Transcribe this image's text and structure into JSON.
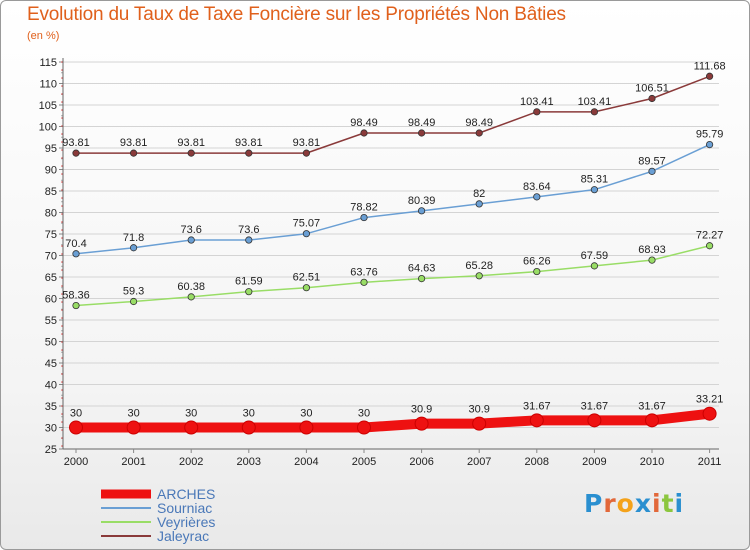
{
  "title": "Evolution du Taux de Taxe Foncière sur les Propriétés Non Bâties",
  "subtitle": "(en %)",
  "logo": {
    "letters": [
      "P",
      "r",
      "o",
      "x",
      "i",
      "t",
      "i"
    ],
    "colors": [
      "#2a8fd0",
      "#e2683a",
      "#f4a21a",
      "#2a8fd0",
      "#e2683a",
      "#8cc63f",
      "#2a8fd0"
    ]
  },
  "chart_data": {
    "type": "line",
    "x": [
      "2000",
      "2001",
      "2002",
      "2003",
      "2004",
      "2005",
      "2006",
      "2007",
      "2008",
      "2009",
      "2010",
      "2011"
    ],
    "ylim": [
      25,
      115
    ],
    "yticks": [
      25,
      30,
      35,
      40,
      45,
      50,
      55,
      60,
      65,
      70,
      75,
      80,
      85,
      90,
      95,
      100,
      105,
      110,
      115
    ],
    "grid": "horizontal",
    "legend_position": "bottom-left",
    "series": [
      {
        "name": "ARCHES",
        "color": "#ee1111",
        "values": [
          30,
          30,
          30,
          30,
          30,
          30,
          30.9,
          30.9,
          31.67,
          31.67,
          31.67,
          33.21
        ],
        "labels": [
          "30",
          "30",
          "30",
          "30",
          "30",
          "30",
          "30.9",
          "30.9",
          "31.67",
          "31.67",
          "31.67",
          "33.21"
        ]
      },
      {
        "name": "Sourniac",
        "color": "#6a9fd4",
        "values": [
          70.4,
          71.8,
          73.6,
          73.6,
          75.07,
          78.82,
          80.39,
          82,
          83.64,
          85.31,
          89.57,
          95.79
        ],
        "labels": [
          "70.4",
          "71.8",
          "73.6",
          "73.6",
          "75.07",
          "78.82",
          "80.39",
          "82",
          "83.64",
          "85.31",
          "89.57",
          "95.79"
        ]
      },
      {
        "name": "Veyrières",
        "color": "#99dd66",
        "values": [
          58.36,
          59.3,
          60.38,
          61.59,
          62.51,
          63.76,
          64.63,
          65.28,
          66.26,
          67.59,
          68.93,
          72.27
        ],
        "labels": [
          "58.36",
          "59.3",
          "60.38",
          "61.59",
          "62.51",
          "63.76",
          "64.63",
          "65.28",
          "66.26",
          "67.59",
          "68.93",
          "72.27"
        ]
      },
      {
        "name": "Jaleyrac",
        "color": "#8a3a3a",
        "values": [
          93.81,
          93.81,
          93.81,
          93.81,
          93.81,
          98.49,
          98.49,
          98.49,
          103.41,
          103.41,
          106.51,
          111.68
        ],
        "labels": [
          "93.81",
          "93.81",
          "93.81",
          "93.81",
          "93.81",
          "98.49",
          "98.49",
          "98.49",
          "103.41",
          "103.41",
          "106.51",
          "111.68"
        ]
      }
    ]
  }
}
